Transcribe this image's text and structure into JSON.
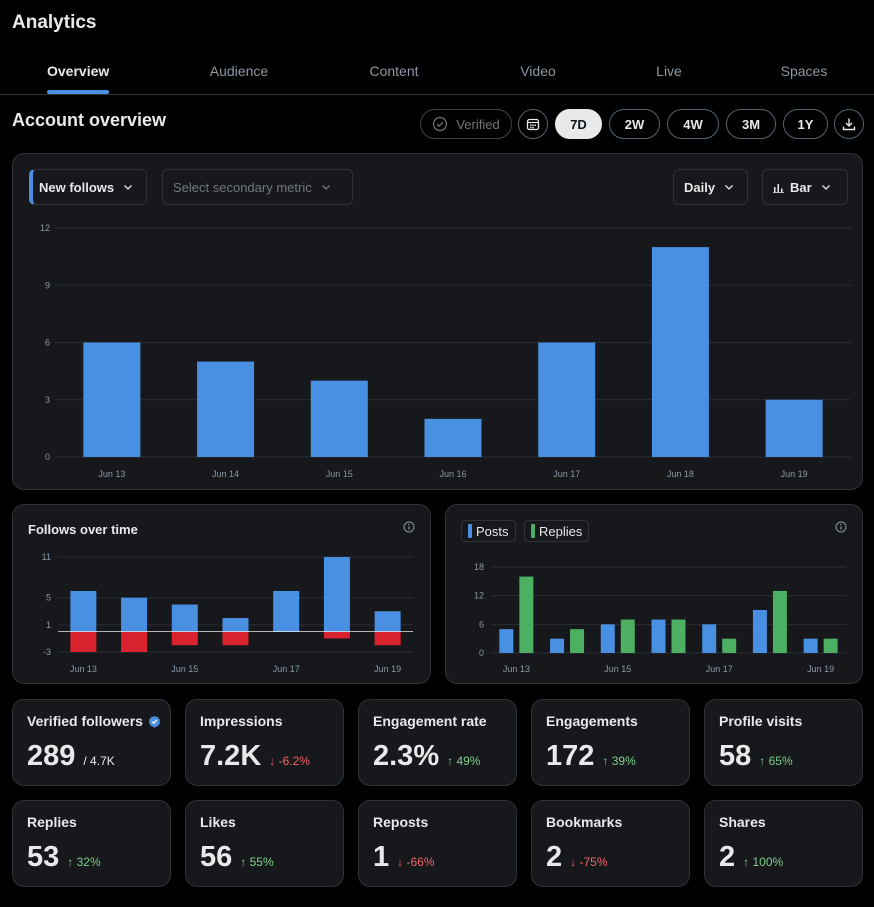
{
  "app": {
    "title": "Analytics"
  },
  "tabs": [
    {
      "label": "Overview",
      "active": true
    },
    {
      "label": "Audience",
      "active": false
    },
    {
      "label": "Content",
      "active": false
    },
    {
      "label": "Video",
      "active": false
    },
    {
      "label": "Live",
      "active": false
    },
    {
      "label": "Spaces",
      "active": false
    }
  ],
  "overview": {
    "title": "Account overview",
    "verified_label": "Verified",
    "ranges": [
      {
        "label": "7D",
        "active": true
      },
      {
        "label": "2W",
        "active": false
      },
      {
        "label": "4W",
        "active": false
      },
      {
        "label": "3M",
        "active": false
      },
      {
        "label": "1Y",
        "active": false
      }
    ],
    "icons": {
      "verified": "check-circle-icon",
      "calendar": "calendar-icon",
      "download": "download-icon"
    }
  },
  "main_chart": {
    "primary_metric": "New follows",
    "secondary_placeholder": "Select secondary metric",
    "granularity": "Daily",
    "chart_type_label": "Bar",
    "bar_color": "#4a90e2"
  },
  "follows_chart": {
    "title": "Follows over time",
    "gain_color": "#4a90e2",
    "loss_color": "#d9242f"
  },
  "posts_chart": {
    "legend": [
      {
        "label": "Posts",
        "color": "#4a90e2"
      },
      {
        "label": "Replies",
        "color": "#4caf61"
      }
    ]
  },
  "chart_data": [
    {
      "type": "bar",
      "categories": [
        "Jun 13",
        "Jun 14",
        "Jun 15",
        "Jun 16",
        "Jun 17",
        "Jun 18",
        "Jun 19"
      ],
      "values": [
        6,
        5,
        4,
        2,
        6,
        11,
        3
      ],
      "title": "",
      "xlabel": "",
      "ylabel": "",
      "ylim": [
        0,
        12
      ],
      "yticks": [
        0,
        3,
        6,
        9,
        12
      ],
      "grid": true
    },
    {
      "type": "bar",
      "title": "Follows over time",
      "categories": [
        "Jun 13",
        "Jun 14",
        "Jun 15",
        "Jun 16",
        "Jun 17",
        "Jun 18",
        "Jun 19"
      ],
      "xticks": [
        "Jun 13",
        "Jun 15",
        "Jun 17",
        "Jun 19"
      ],
      "series": [
        {
          "values": [
            6,
            5,
            4,
            2,
            6,
            11,
            3
          ]
        },
        {
          "values": [
            -3,
            -3,
            -2,
            -2,
            0,
            -1,
            -2
          ]
        }
      ],
      "ylim": [
        -3,
        11
      ],
      "yticks": [
        -3,
        1,
        5,
        11
      ],
      "grid": true
    },
    {
      "type": "bar",
      "categories": [
        "Jun 13",
        "Jun 14",
        "Jun 15",
        "Jun 16",
        "Jun 17",
        "Jun 18",
        "Jun 19"
      ],
      "xticks": [
        "Jun 13",
        "Jun 15",
        "Jun 17",
        "Jun 19"
      ],
      "series": [
        {
          "name": "Posts",
          "values": [
            5,
            3,
            6,
            7,
            6,
            9,
            3
          ]
        },
        {
          "name": "Replies",
          "values": [
            16,
            5,
            7,
            7,
            3,
            13,
            3
          ]
        }
      ],
      "ylim": [
        0,
        18
      ],
      "yticks": [
        0,
        6,
        12,
        18
      ],
      "grid": true,
      "legend": "top-left"
    }
  ],
  "stats": [
    {
      "label": "Verified followers",
      "value": "289",
      "sub": "/ 4.7K",
      "verified_badge": true
    },
    {
      "label": "Impressions",
      "value": "7.2K",
      "delta": "-6.2%",
      "dir": "down"
    },
    {
      "label": "Engagement rate",
      "value": "2.3%",
      "delta": "49%",
      "dir": "up"
    },
    {
      "label": "Engagements",
      "value": "172",
      "delta": "39%",
      "dir": "up"
    },
    {
      "label": "Profile visits",
      "value": "58",
      "delta": "65%",
      "dir": "up"
    },
    {
      "label": "Replies",
      "value": "53",
      "delta": "32%",
      "dir": "up"
    },
    {
      "label": "Likes",
      "value": "56",
      "delta": "55%",
      "dir": "up"
    },
    {
      "label": "Reposts",
      "value": "1",
      "delta": "-66%",
      "dir": "down"
    },
    {
      "label": "Bookmarks",
      "value": "2",
      "delta": "-75%",
      "dir": "down"
    },
    {
      "label": "Shares",
      "value": "2",
      "delta": "100%",
      "dir": "up"
    }
  ]
}
